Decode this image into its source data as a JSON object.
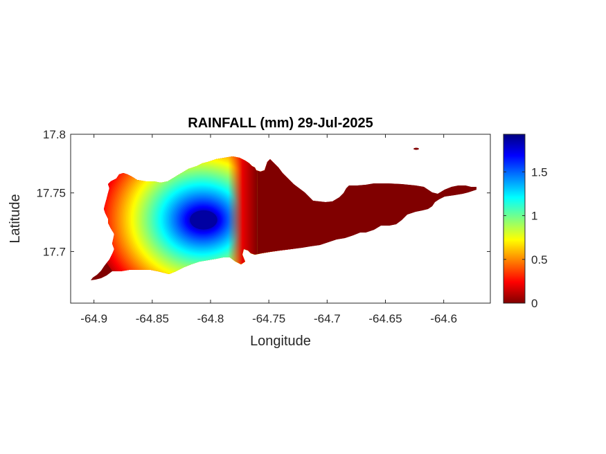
{
  "chart_data": {
    "type": "heatmap",
    "title": "RAINFALL (mm) 29-Jul-2025",
    "xlabel": "Longitude",
    "ylabel": "Latitude",
    "xlim": [
      -64.92,
      -64.56
    ],
    "ylim": [
      17.656,
      17.8
    ],
    "xticks": [
      -64.9,
      -64.85,
      -64.8,
      -64.75,
      -64.7,
      -64.65,
      -64.6
    ],
    "xtick_labels": [
      "-64.9",
      "-64.85",
      "-64.8",
      "-64.75",
      "-64.7",
      "-64.65",
      "-64.6"
    ],
    "yticks": [
      17.7,
      17.75,
      17.8
    ],
    "ytick_labels": [
      "17.7",
      "17.75",
      "17.8"
    ],
    "colorbar": {
      "colormap": "jet",
      "clim": [
        0,
        1.93
      ],
      "ticks": [
        0,
        0.5,
        1,
        1.5
      ],
      "tick_labels": [
        "0",
        "0.5",
        "1",
        "1.5"
      ]
    },
    "field": {
      "peak_value_mm": 1.93,
      "peak_location": {
        "lon": -64.806,
        "lat": 17.727
      },
      "regions": [
        {
          "description": "western",
          "lon_range": [
            -64.9,
            -64.78
          ],
          "value_range_mm": [
            0.15,
            1.93
          ]
        },
        {
          "description": "eastern",
          "lon_range": [
            -64.76,
            -64.57
          ],
          "value_mm": 0
        }
      ]
    },
    "grid": false
  }
}
